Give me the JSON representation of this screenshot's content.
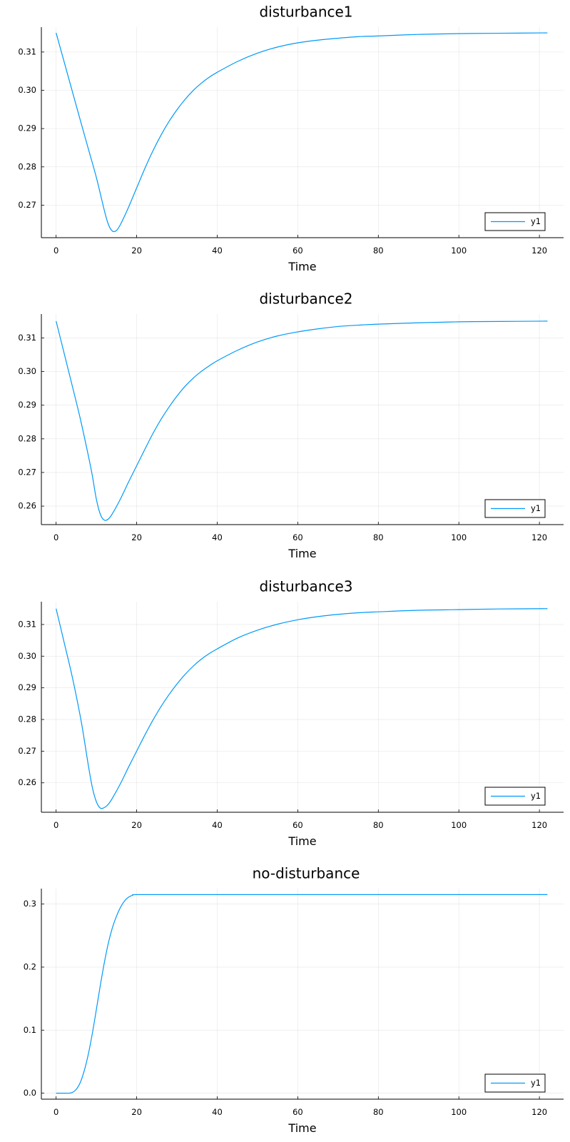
{
  "chart_data": [
    {
      "type": "line",
      "title": "disturbance1",
      "xlabel": "Time",
      "ylabel": "",
      "xlim": [
        -3.66,
        126
      ],
      "ylim": [
        0.2615,
        0.3165
      ],
      "xticks": [
        0,
        20,
        40,
        60,
        80,
        100,
        120
      ],
      "xtick_labels": [
        "0",
        "20",
        "40",
        "60",
        "80",
        "100",
        "120"
      ],
      "yticks": [
        0.27,
        0.28,
        0.29,
        0.3,
        0.31
      ],
      "ytick_labels": [
        "0.27",
        "0.28",
        "0.29",
        "0.30",
        "0.31"
      ],
      "grid": true,
      "legend": "bottom-right",
      "series": [
        {
          "name": "y1",
          "color": "#009af9",
          "x": [
            0,
            2,
            4,
            6,
            8,
            10,
            12,
            13,
            14,
            15,
            16,
            18,
            20,
            22,
            24,
            26,
            28,
            30,
            32,
            34,
            36,
            38,
            40,
            45,
            50,
            55,
            60,
            65,
            70,
            75,
            80,
            90,
            100,
            110,
            122
          ],
          "y": [
            0.315,
            0.3074,
            0.2998,
            0.2922,
            0.2847,
            0.2772,
            0.2685,
            0.2649,
            0.2632,
            0.2634,
            0.265,
            0.2695,
            0.2745,
            0.2795,
            0.2841,
            0.2882,
            0.2918,
            0.2949,
            0.2976,
            0.2999,
            0.3018,
            0.3034,
            0.3047,
            0.3075,
            0.3097,
            0.3113,
            0.3124,
            0.3131,
            0.3136,
            0.314,
            0.3142,
            0.3146,
            0.3148,
            0.3149,
            0.315
          ]
        }
      ]
    },
    {
      "type": "line",
      "title": "disturbance2",
      "xlabel": "Time",
      "ylabel": "",
      "xlim": [
        -3.66,
        126
      ],
      "ylim": [
        0.2545,
        0.3171
      ],
      "xticks": [
        0,
        20,
        40,
        60,
        80,
        100,
        120
      ],
      "xtick_labels": [
        "0",
        "20",
        "40",
        "60",
        "80",
        "100",
        "120"
      ],
      "yticks": [
        0.26,
        0.27,
        0.28,
        0.29,
        0.3,
        0.31
      ],
      "ytick_labels": [
        "0.26",
        "0.27",
        "0.28",
        "0.29",
        "0.30",
        "0.31"
      ],
      "grid": true,
      "legend": "bottom-right",
      "series": [
        {
          "name": "y1",
          "color": "#009af9",
          "x": [
            0,
            2,
            4,
            6,
            8,
            9,
            10,
            11,
            12,
            13,
            14,
            16,
            18,
            20,
            22,
            24,
            26,
            28,
            30,
            32,
            34,
            36,
            38,
            40,
            45,
            50,
            55,
            60,
            65,
            70,
            75,
            80,
            90,
            100,
            110,
            122
          ],
          "y": [
            0.315,
            0.3054,
            0.2958,
            0.286,
            0.275,
            0.269,
            0.262,
            0.2575,
            0.2558,
            0.2562,
            0.2578,
            0.2622,
            0.2672,
            0.272,
            0.2768,
            0.2815,
            0.2857,
            0.2894,
            0.2927,
            0.2956,
            0.298,
            0.3,
            0.3017,
            0.3032,
            0.3063,
            0.3088,
            0.3106,
            0.3118,
            0.3127,
            0.3134,
            0.3138,
            0.3141,
            0.3145,
            0.3148,
            0.3149,
            0.315
          ]
        }
      ]
    },
    {
      "type": "line",
      "title": "disturbance3",
      "xlabel": "Time",
      "ylabel": "",
      "xlim": [
        -3.66,
        126
      ],
      "ylim": [
        0.2507,
        0.3172
      ],
      "xticks": [
        0,
        20,
        40,
        60,
        80,
        100,
        120
      ],
      "xtick_labels": [
        "0",
        "20",
        "40",
        "60",
        "80",
        "100",
        "120"
      ],
      "yticks": [
        0.26,
        0.27,
        0.28,
        0.29,
        0.3,
        0.31
      ],
      "ytick_labels": [
        "0.26",
        "0.27",
        "0.28",
        "0.29",
        "0.30",
        "0.31"
      ],
      "grid": true,
      "legend": "bottom-right",
      "series": [
        {
          "name": "y1",
          "color": "#009af9",
          "x": [
            0,
            2,
            4,
            6,
            7,
            8,
            9,
            10,
            11,
            12,
            13,
            14,
            16,
            18,
            20,
            22,
            24,
            26,
            28,
            30,
            32,
            34,
            36,
            38,
            40,
            45,
            50,
            55,
            60,
            65,
            70,
            75,
            80,
            90,
            100,
            110,
            122
          ],
          "y": [
            0.315,
            0.3043,
            0.2935,
            0.281,
            0.2735,
            0.2655,
            0.2585,
            0.254,
            0.252,
            0.2522,
            0.2533,
            0.2552,
            0.2598,
            0.265,
            0.27,
            0.275,
            0.2797,
            0.284,
            0.2878,
            0.2912,
            0.2942,
            0.2968,
            0.299,
            0.3008,
            0.3023,
            0.3057,
            0.3082,
            0.3101,
            0.3115,
            0.3125,
            0.3132,
            0.3137,
            0.314,
            0.3145,
            0.3147,
            0.3149,
            0.315
          ]
        }
      ]
    },
    {
      "type": "line",
      "title": "no-disturbance",
      "xlabel": "Time",
      "ylabel": "",
      "xlim": [
        -3.66,
        126
      ],
      "ylim": [
        -0.0095,
        0.3245
      ],
      "xticks": [
        0,
        20,
        40,
        60,
        80,
        100,
        120
      ],
      "xtick_labels": [
        "0",
        "20",
        "40",
        "60",
        "80",
        "100",
        "120"
      ],
      "yticks": [
        0.0,
        0.1,
        0.2,
        0.3
      ],
      "ytick_labels": [
        "0.0",
        "0.1",
        "0.2",
        "0.3"
      ],
      "grid": true,
      "legend": "bottom-right",
      "series": [
        {
          "name": "y1",
          "color": "#009af9",
          "x": [
            0,
            2,
            3,
            4,
            5,
            6,
            7,
            8,
            9,
            10,
            11,
            12,
            13,
            14,
            15,
            16,
            17,
            18,
            19,
            20,
            30,
            60,
            90,
            122
          ],
          "y": [
            0.0,
            0.0,
            0.0,
            0.001,
            0.006,
            0.017,
            0.036,
            0.062,
            0.095,
            0.133,
            0.172,
            0.208,
            0.239,
            0.263,
            0.281,
            0.295,
            0.305,
            0.311,
            0.314,
            0.315,
            0.315,
            0.315,
            0.315,
            0.315
          ]
        }
      ]
    }
  ]
}
